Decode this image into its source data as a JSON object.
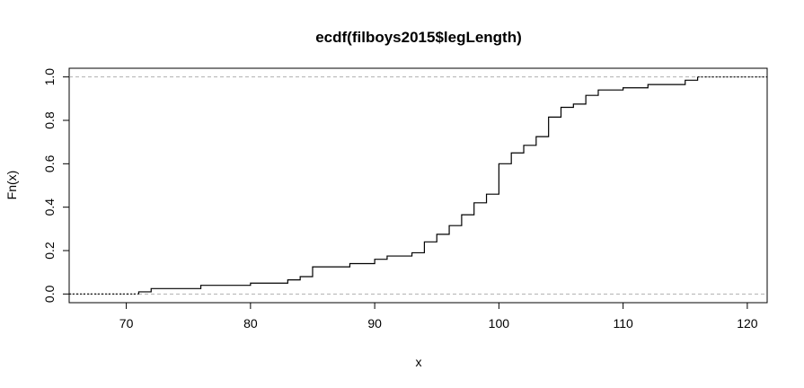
{
  "chart_data": {
    "type": "line",
    "title": "ecdf(filboys2015$legLength)",
    "xlabel": "x",
    "ylabel": "Fn(x)",
    "xlim": [
      65.4,
      121.6
    ],
    "ylim": [
      -0.04,
      1.04
    ],
    "xticks": [
      70,
      80,
      90,
      100,
      110,
      120
    ],
    "yticks": [
      0.0,
      0.2,
      0.4,
      0.6,
      0.8,
      1.0
    ],
    "ytick_labels": [
      "0.0",
      "0.2",
      "0.4",
      "0.6",
      "0.8",
      "1.0"
    ],
    "reference_lines": [
      0,
      1
    ],
    "grid": false,
    "series": [
      {
        "step": "post",
        "x": [
          71,
          72,
          76,
          80,
          83,
          84,
          85,
          88,
          90,
          91,
          93,
          94,
          95,
          96,
          97,
          98,
          99,
          100,
          101,
          102,
          103,
          104,
          105,
          106,
          107,
          108,
          110,
          112,
          115,
          116
        ],
        "y": [
          0.01,
          0.025,
          0.04,
          0.05,
          0.065,
          0.08,
          0.125,
          0.14,
          0.16,
          0.175,
          0.19,
          0.24,
          0.275,
          0.315,
          0.365,
          0.42,
          0.46,
          0.6,
          0.65,
          0.685,
          0.725,
          0.815,
          0.86,
          0.875,
          0.915,
          0.94,
          0.95,
          0.965,
          0.985,
          1.0
        ]
      }
    ]
  }
}
